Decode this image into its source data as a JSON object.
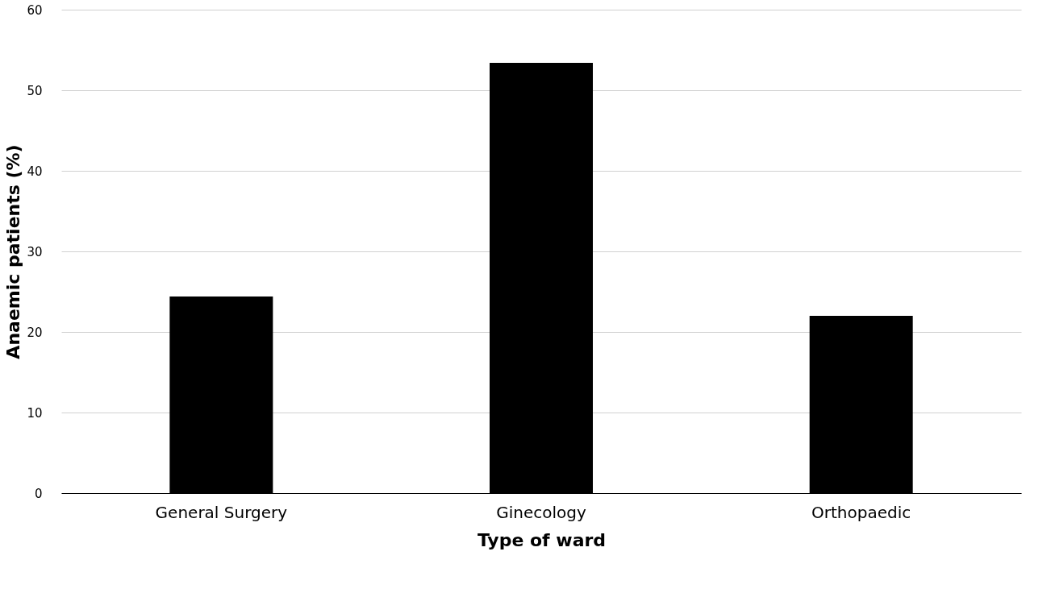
{
  "chart_data": {
    "type": "bar",
    "xlabel": "Type of ward",
    "ylabel": "Anaemic patients (%)",
    "categories": [
      "General Surgery",
      "Ginecology",
      "Orthopaedic"
    ],
    "values": [
      24.4,
      53.4,
      22.0
    ],
    "color": "#000000",
    "ylim": [
      0,
      60
    ],
    "yticks": [
      0,
      10,
      20,
      30,
      40,
      50,
      60
    ],
    "grid": "y"
  }
}
